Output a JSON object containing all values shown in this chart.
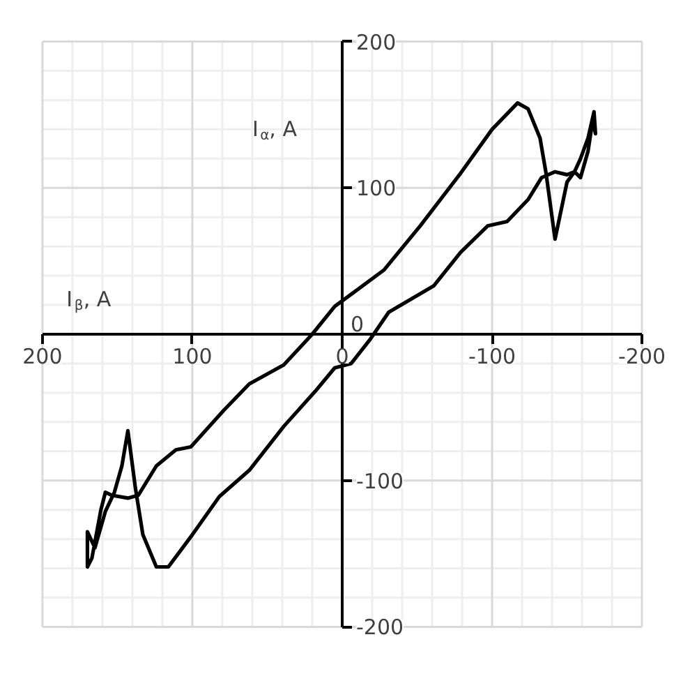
{
  "chart_data": {
    "type": "line",
    "xlabel": "I$_{β}$, A",
    "ylabel": "I$_{α}$, A",
    "x": [
      -168,
      -164,
      -159,
      -155,
      -150,
      -142,
      -136,
      -132,
      -124,
      -117,
      -100,
      -79,
      -52,
      -28,
      5,
      20,
      39,
      62,
      79,
      101,
      111,
      124,
      136,
      143,
      154,
      158,
      161,
      167,
      170,
      170,
      165,
      158,
      152,
      147,
      143,
      138,
      133,
      124,
      116,
      100,
      82,
      62,
      39,
      18,
      5,
      -6,
      -19,
      -31,
      -61,
      -79,
      -97,
      -110,
      -124,
      -133,
      -142,
      -150,
      -155,
      -159,
      -164,
      -168,
      -169,
      -167
    ],
    "series": [
      {
        "color": "#000000",
        "values": [
          152,
          125,
          107,
          111,
          104,
          65,
          110,
          134,
          154,
          158,
          140,
          110,
          74,
          44,
          19,
          0,
          -21,
          -34,
          -52,
          -77,
          -79,
          -90,
          -110,
          -112,
          -110,
          -108,
          -120,
          -153,
          -159,
          -135,
          -146,
          -121,
          -108,
          -90,
          -66,
          -105,
          -137,
          -159,
          -159,
          -137,
          -111,
          -93,
          -63,
          -39,
          -23,
          -20,
          -3,
          15,
          33,
          56,
          74,
          77,
          92,
          107,
          111,
          109,
          111,
          120,
          134,
          152,
          137,
          147
        ]
      }
    ],
    "xlim": [
      200,
      -200
    ],
    "ylim": [
      -200,
      200
    ],
    "xticks": [
      200,
      100,
      0,
      -100,
      -200
    ],
    "yticks": [
      -200,
      -100,
      0,
      100,
      200
    ],
    "grid": true,
    "marker": "none",
    "line_style": "solid"
  }
}
